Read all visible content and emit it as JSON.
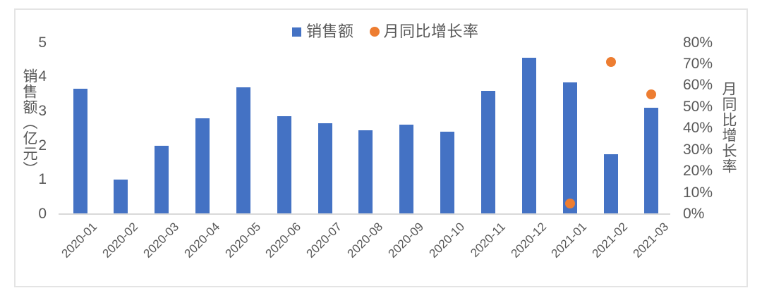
{
  "legend": {
    "sales_label": "销售额",
    "growth_label": "月同比增长率"
  },
  "colors": {
    "bar_blue": "#4472C4",
    "dot_orange": "#ED7D31",
    "axis_text": "#595959",
    "axis_line": "#D9D9D9",
    "frame_border": "#E4E4E4"
  },
  "chart_data": {
    "type": "combo",
    "categories": [
      "2020-01",
      "2020-02",
      "2020-03",
      "2020-04",
      "2020-05",
      "2020-06",
      "2020-07",
      "2020-08",
      "2020-09",
      "2020-10",
      "2020-11",
      "2020-12",
      "2021-01",
      "2021-02",
      "2021-03"
    ],
    "series": [
      {
        "name": "销售额",
        "type": "bar",
        "axis": "left",
        "values": [
          3.65,
          1.0,
          2.0,
          2.8,
          3.7,
          2.85,
          2.65,
          2.45,
          2.6,
          2.4,
          3.6,
          4.55,
          3.85,
          1.75,
          3.1
        ]
      },
      {
        "name": "月同比增长率",
        "type": "scatter",
        "axis": "right",
        "values_pct": [
          null,
          null,
          null,
          null,
          null,
          null,
          null,
          null,
          null,
          null,
          null,
          null,
          5,
          71,
          56
        ]
      }
    ],
    "left_axis": {
      "label": "销售额（亿元）",
      "min": 0,
      "max": 5,
      "step": 1,
      "ticks": [
        5,
        4,
        3,
        2,
        1,
        0
      ]
    },
    "right_axis": {
      "label": "月同比增长率",
      "min_pct": 0,
      "max_pct": 80,
      "step_pct": 10,
      "ticks_pct": [
        80,
        70,
        60,
        50,
        40,
        30,
        20,
        10,
        0
      ],
      "format": "percent"
    },
    "grid": false,
    "legend_position": "top-center"
  }
}
